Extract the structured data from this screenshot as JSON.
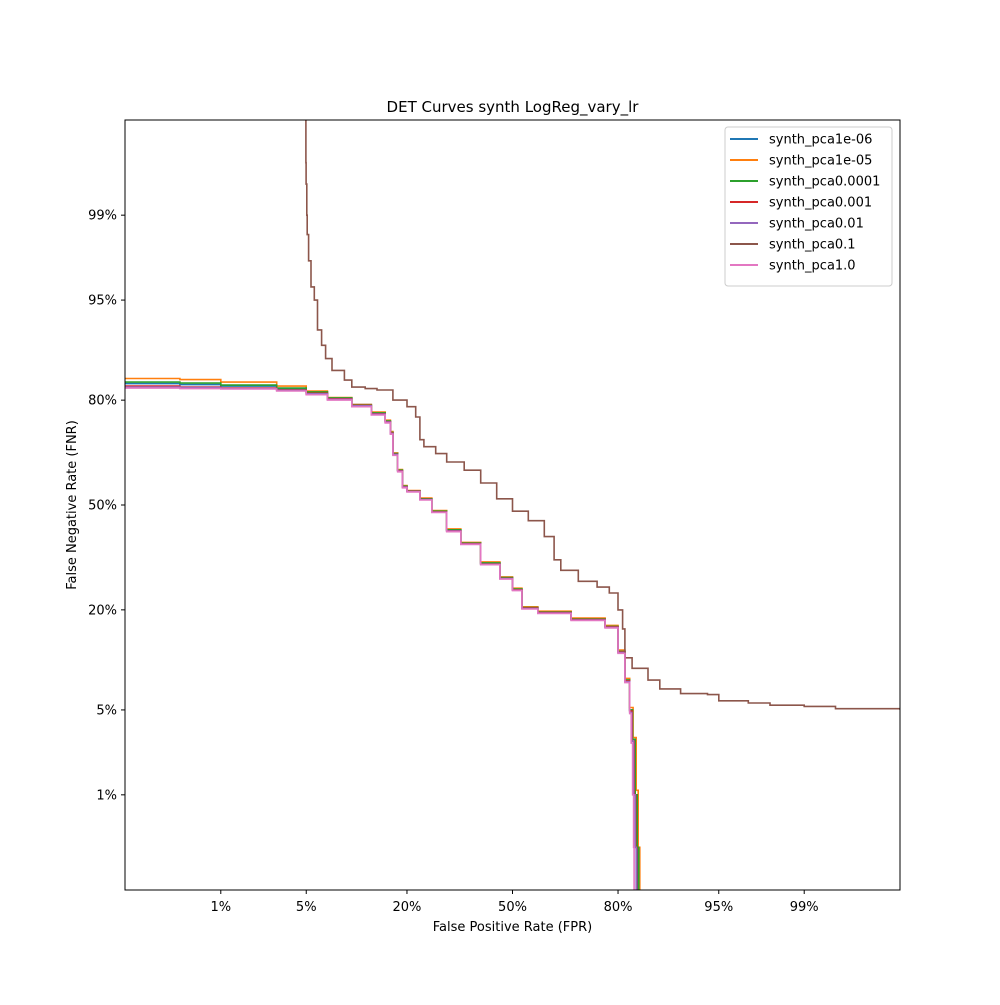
{
  "chart_data": {
    "type": "line",
    "title": "DET Curves synth  LogReg_vary_lr",
    "xlabel": "False Positive Rate (FPR)",
    "ylabel": "False Negative Rate (FNR)",
    "scale": "normal-deviate (probit)",
    "x_tick_labels": [
      "1%",
      "5%",
      "20%",
      "50%",
      "80%",
      "95%",
      "99%"
    ],
    "x_tick_values": [
      0.01,
      0.05,
      0.2,
      0.5,
      0.8,
      0.95,
      0.99
    ],
    "y_tick_labels": [
      "1%",
      "5%",
      "20%",
      "50%",
      "80%",
      "95%",
      "99%"
    ],
    "y_tick_values": [
      0.01,
      0.05,
      0.2,
      0.5,
      0.8,
      0.95,
      0.99
    ],
    "xlim": [
      0.001,
      0.999
    ],
    "ylim": [
      0.001,
      0.999
    ],
    "grid": false,
    "legend_position": "top-right",
    "series": [
      {
        "name": "synth_pca1e-06",
        "color": "#1f77b4",
        "points": [
          [
            0.001,
            0.835
          ],
          [
            0.004,
            0.833
          ],
          [
            0.01,
            0.83
          ],
          [
            0.03,
            0.825
          ],
          [
            0.05,
            0.818
          ],
          [
            0.07,
            0.805
          ],
          [
            0.1,
            0.79
          ],
          [
            0.13,
            0.77
          ],
          [
            0.155,
            0.75
          ],
          [
            0.165,
            0.72
          ],
          [
            0.17,
            0.66
          ],
          [
            0.18,
            0.61
          ],
          [
            0.19,
            0.56
          ],
          [
            0.2,
            0.545
          ],
          [
            0.23,
            0.52
          ],
          [
            0.26,
            0.48
          ],
          [
            0.3,
            0.42
          ],
          [
            0.34,
            0.38
          ],
          [
            0.4,
            0.32
          ],
          [
            0.46,
            0.28
          ],
          [
            0.5,
            0.25
          ],
          [
            0.53,
            0.205
          ],
          [
            0.58,
            0.195
          ],
          [
            0.68,
            0.18
          ],
          [
            0.77,
            0.165
          ],
          [
            0.8,
            0.12
          ],
          [
            0.815,
            0.08
          ],
          [
            0.825,
            0.05
          ],
          [
            0.83,
            0.03
          ],
          [
            0.835,
            0.01
          ],
          [
            0.838,
            0.003
          ],
          [
            0.84,
            0.001
          ]
        ]
      },
      {
        "name": "synth_pca1e-05",
        "color": "#ff7f0e",
        "points": [
          [
            0.001,
            0.845
          ],
          [
            0.004,
            0.843
          ],
          [
            0.01,
            0.838
          ],
          [
            0.03,
            0.83
          ],
          [
            0.05,
            0.82
          ],
          [
            0.07,
            0.806
          ],
          [
            0.1,
            0.79
          ],
          [
            0.13,
            0.772
          ],
          [
            0.155,
            0.752
          ],
          [
            0.165,
            0.722
          ],
          [
            0.17,
            0.662
          ],
          [
            0.18,
            0.612
          ],
          [
            0.19,
            0.562
          ],
          [
            0.2,
            0.546
          ],
          [
            0.23,
            0.522
          ],
          [
            0.26,
            0.482
          ],
          [
            0.3,
            0.424
          ],
          [
            0.34,
            0.382
          ],
          [
            0.4,
            0.324
          ],
          [
            0.46,
            0.282
          ],
          [
            0.5,
            0.252
          ],
          [
            0.53,
            0.207
          ],
          [
            0.58,
            0.197
          ],
          [
            0.68,
            0.182
          ],
          [
            0.77,
            0.167
          ],
          [
            0.8,
            0.122
          ],
          [
            0.815,
            0.082
          ],
          [
            0.825,
            0.052
          ],
          [
            0.832,
            0.031
          ],
          [
            0.838,
            0.011
          ],
          [
            0.842,
            0.003
          ],
          [
            0.845,
            0.001
          ]
        ]
      },
      {
        "name": "synth_pca0.0001",
        "color": "#2ca02c",
        "points": [
          [
            0.001,
            0.838
          ],
          [
            0.004,
            0.836
          ],
          [
            0.01,
            0.832
          ],
          [
            0.03,
            0.826
          ],
          [
            0.05,
            0.818
          ],
          [
            0.07,
            0.805
          ],
          [
            0.1,
            0.789
          ],
          [
            0.13,
            0.77
          ],
          [
            0.155,
            0.75
          ],
          [
            0.165,
            0.72
          ],
          [
            0.17,
            0.66
          ],
          [
            0.18,
            0.61
          ],
          [
            0.19,
            0.56
          ],
          [
            0.2,
            0.545
          ],
          [
            0.23,
            0.52
          ],
          [
            0.26,
            0.48
          ],
          [
            0.3,
            0.421
          ],
          [
            0.34,
            0.38
          ],
          [
            0.4,
            0.321
          ],
          [
            0.46,
            0.28
          ],
          [
            0.5,
            0.25
          ],
          [
            0.53,
            0.205
          ],
          [
            0.58,
            0.195
          ],
          [
            0.68,
            0.18
          ],
          [
            0.77,
            0.165
          ],
          [
            0.8,
            0.12
          ],
          [
            0.815,
            0.08
          ],
          [
            0.825,
            0.05
          ],
          [
            0.831,
            0.03
          ],
          [
            0.836,
            0.01
          ],
          [
            0.84,
            0.003
          ],
          [
            0.843,
            0.001
          ]
        ]
      },
      {
        "name": "synth_pca0.001",
        "color": "#d62728",
        "points": [
          [
            0.001,
            0.83
          ],
          [
            0.004,
            0.828
          ],
          [
            0.01,
            0.826
          ],
          [
            0.03,
            0.822
          ],
          [
            0.05,
            0.815
          ],
          [
            0.07,
            0.803
          ],
          [
            0.1,
            0.788
          ],
          [
            0.13,
            0.768
          ],
          [
            0.155,
            0.748
          ],
          [
            0.165,
            0.718
          ],
          [
            0.17,
            0.658
          ],
          [
            0.18,
            0.608
          ],
          [
            0.19,
            0.558
          ],
          [
            0.2,
            0.544
          ],
          [
            0.23,
            0.518
          ],
          [
            0.26,
            0.478
          ],
          [
            0.3,
            0.418
          ],
          [
            0.34,
            0.378
          ],
          [
            0.4,
            0.318
          ],
          [
            0.46,
            0.278
          ],
          [
            0.5,
            0.248
          ],
          [
            0.53,
            0.204
          ],
          [
            0.58,
            0.194
          ],
          [
            0.68,
            0.179
          ],
          [
            0.77,
            0.164
          ],
          [
            0.8,
            0.119
          ],
          [
            0.815,
            0.079
          ],
          [
            0.825,
            0.049
          ],
          [
            0.83,
            0.029
          ],
          [
            0.834,
            0.01
          ],
          [
            0.837,
            0.003
          ],
          [
            0.839,
            0.001
          ]
        ]
      },
      {
        "name": "synth_pca0.01",
        "color": "#9467bd",
        "points": [
          [
            0.001,
            0.828
          ],
          [
            0.004,
            0.827
          ],
          [
            0.01,
            0.825
          ],
          [
            0.03,
            0.821
          ],
          [
            0.05,
            0.814
          ],
          [
            0.07,
            0.802
          ],
          [
            0.1,
            0.787
          ],
          [
            0.13,
            0.767
          ],
          [
            0.155,
            0.747
          ],
          [
            0.165,
            0.717
          ],
          [
            0.17,
            0.657
          ],
          [
            0.18,
            0.607
          ],
          [
            0.19,
            0.557
          ],
          [
            0.2,
            0.543
          ],
          [
            0.23,
            0.517
          ],
          [
            0.26,
            0.477
          ],
          [
            0.3,
            0.417
          ],
          [
            0.34,
            0.377
          ],
          [
            0.4,
            0.317
          ],
          [
            0.46,
            0.277
          ],
          [
            0.5,
            0.247
          ],
          [
            0.53,
            0.203
          ],
          [
            0.58,
            0.193
          ],
          [
            0.68,
            0.178
          ],
          [
            0.77,
            0.163
          ],
          [
            0.8,
            0.118
          ],
          [
            0.815,
            0.078
          ],
          [
            0.825,
            0.048
          ],
          [
            0.829,
            0.029
          ],
          [
            0.833,
            0.01
          ],
          [
            0.836,
            0.003
          ],
          [
            0.838,
            0.001
          ]
        ]
      },
      {
        "name": "synth_pca0.1",
        "color": "#8c564b",
        "points": [
          [
            0.0497,
            0.999
          ],
          [
            0.0497,
            0.997
          ],
          [
            0.0499,
            0.995
          ],
          [
            0.0505,
            0.99
          ],
          [
            0.0508,
            0.985
          ],
          [
            0.052,
            0.975
          ],
          [
            0.054,
            0.96
          ],
          [
            0.057,
            0.95
          ],
          [
            0.06,
            0.92
          ],
          [
            0.064,
            0.9
          ],
          [
            0.068,
            0.88
          ],
          [
            0.075,
            0.86
          ],
          [
            0.09,
            0.842
          ],
          [
            0.1,
            0.828
          ],
          [
            0.12,
            0.825
          ],
          [
            0.14,
            0.822
          ],
          [
            0.17,
            0.8
          ],
          [
            0.2,
            0.785
          ],
          [
            0.22,
            0.76
          ],
          [
            0.23,
            0.7
          ],
          [
            0.24,
            0.68
          ],
          [
            0.27,
            0.66
          ],
          [
            0.3,
            0.635
          ],
          [
            0.35,
            0.61
          ],
          [
            0.4,
            0.57
          ],
          [
            0.45,
            0.52
          ],
          [
            0.5,
            0.48
          ],
          [
            0.55,
            0.45
          ],
          [
            0.6,
            0.4
          ],
          [
            0.63,
            0.33
          ],
          [
            0.65,
            0.3
          ],
          [
            0.7,
            0.27
          ],
          [
            0.75,
            0.255
          ],
          [
            0.78,
            0.24
          ],
          [
            0.8,
            0.2
          ],
          [
            0.81,
            0.16
          ],
          [
            0.815,
            0.11
          ],
          [
            0.83,
            0.095
          ],
          [
            0.86,
            0.08
          ],
          [
            0.88,
            0.07
          ],
          [
            0.91,
            0.065
          ],
          [
            0.94,
            0.064
          ],
          [
            0.95,
            0.058
          ],
          [
            0.97,
            0.056
          ],
          [
            0.98,
            0.054
          ],
          [
            0.99,
            0.053
          ],
          [
            0.995,
            0.051
          ],
          [
            0.999,
            0.05
          ]
        ]
      },
      {
        "name": "synth_pca1.0",
        "color": "#e377c2",
        "points": [
          [
            0.001,
            0.826
          ],
          [
            0.004,
            0.825
          ],
          [
            0.01,
            0.824
          ],
          [
            0.03,
            0.82
          ],
          [
            0.05,
            0.812
          ],
          [
            0.07,
            0.8
          ],
          [
            0.1,
            0.785
          ],
          [
            0.13,
            0.765
          ],
          [
            0.155,
            0.745
          ],
          [
            0.165,
            0.715
          ],
          [
            0.17,
            0.655
          ],
          [
            0.18,
            0.605
          ],
          [
            0.19,
            0.555
          ],
          [
            0.2,
            0.542
          ],
          [
            0.23,
            0.516
          ],
          [
            0.26,
            0.476
          ],
          [
            0.3,
            0.415
          ],
          [
            0.34,
            0.376
          ],
          [
            0.4,
            0.316
          ],
          [
            0.46,
            0.276
          ],
          [
            0.5,
            0.246
          ],
          [
            0.53,
            0.202
          ],
          [
            0.58,
            0.192
          ],
          [
            0.68,
            0.177
          ],
          [
            0.77,
            0.162
          ],
          [
            0.8,
            0.117
          ],
          [
            0.815,
            0.077
          ],
          [
            0.825,
            0.047
          ],
          [
            0.828,
            0.028
          ],
          [
            0.831,
            0.01
          ],
          [
            0.833,
            0.003
          ],
          [
            0.834,
            0.001
          ]
        ]
      }
    ]
  }
}
